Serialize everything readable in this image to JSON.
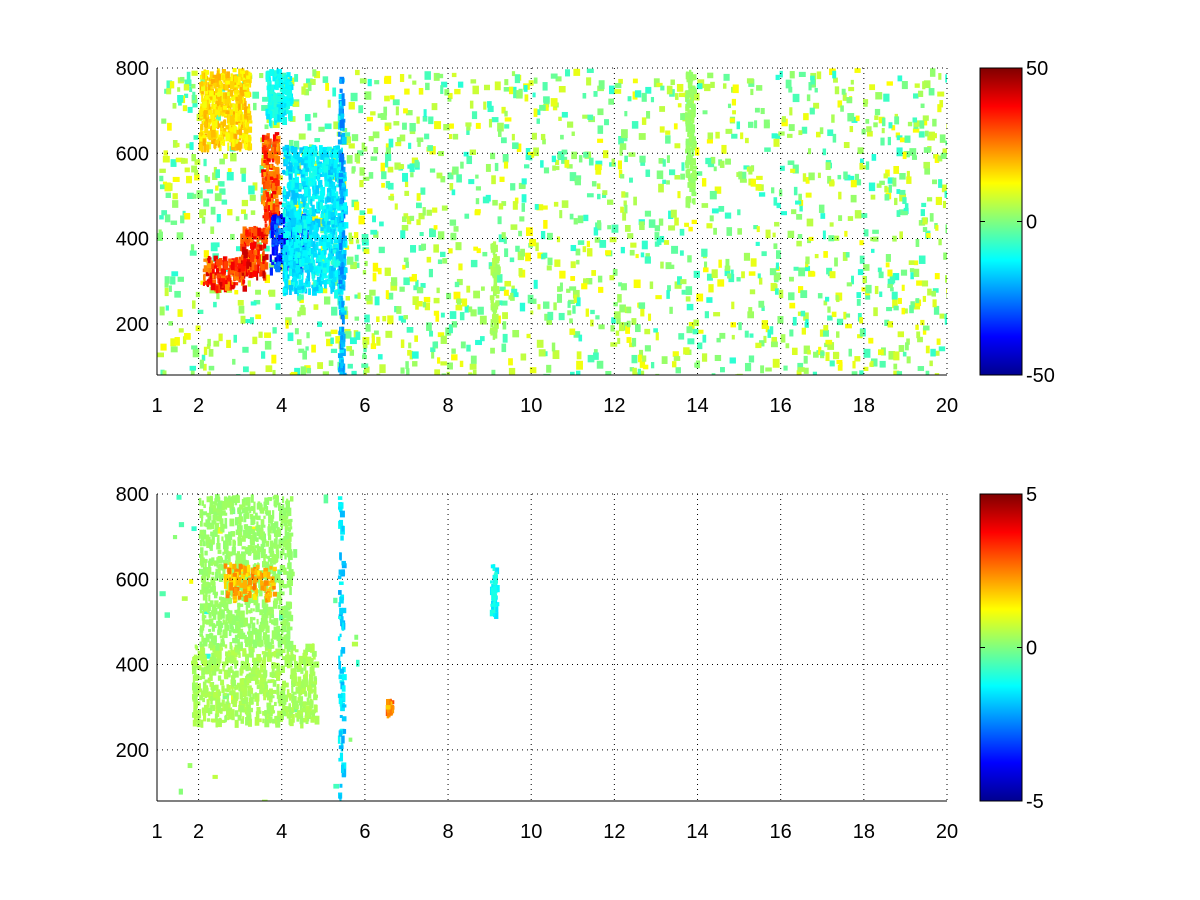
{
  "chart_data": [
    {
      "type": "heatmap",
      "title": "",
      "xlabel": "",
      "ylabel": "",
      "xlim": [
        1,
        20
      ],
      "ylim": [
        80,
        800
      ],
      "xticks": [
        1,
        2,
        4,
        6,
        8,
        10,
        12,
        14,
        16,
        18,
        20
      ],
      "yticks": [
        200,
        400,
        600,
        800
      ],
      "grid": true,
      "colormap": "jet",
      "clim": [
        -50,
        50
      ],
      "colorbar_ticks": [
        -50,
        0,
        50
      ],
      "features": [
        {
          "x": [
            2.1,
            3.1
          ],
          "y": [
            290,
            360
          ],
          "value": 40
        },
        {
          "x": [
            3.0,
            3.6
          ],
          "y": [
            320,
            430
          ],
          "value": 42
        },
        {
          "x": [
            3.5,
            3.9
          ],
          "y": [
            420,
            650
          ],
          "value": 38
        },
        {
          "x": [
            2.0,
            3.2
          ],
          "y": [
            620,
            800
          ],
          "value": 20
        },
        {
          "x": [
            3.7,
            4.6
          ],
          "y": [
            330,
            460
          ],
          "value": -40
        },
        {
          "x": [
            4.0,
            5.5
          ],
          "y": [
            280,
            620
          ],
          "value": -18
        },
        {
          "x": [
            3.6,
            4.2
          ],
          "y": [
            680,
            800
          ],
          "value": -15
        },
        {
          "x": [
            5.35,
            5.45
          ],
          "y": [
            80,
            800
          ],
          "value": -25
        },
        {
          "x": [
            13.7,
            13.9
          ],
          "y": [
            480,
            800
          ],
          "value": 3
        },
        {
          "x": [
            9.0,
            9.15
          ],
          "y": [
            180,
            400
          ],
          "value": 5
        }
      ]
    },
    {
      "type": "heatmap",
      "title": "",
      "xlabel": "",
      "ylabel": "",
      "xlim": [
        1,
        20
      ],
      "ylim": [
        80,
        800
      ],
      "xticks": [
        1,
        2,
        4,
        6,
        8,
        10,
        12,
        14,
        16,
        18,
        20
      ],
      "yticks": [
        200,
        400,
        600,
        800
      ],
      "grid": true,
      "colormap": "jet",
      "clim": [
        -5,
        5
      ],
      "colorbar_ticks": [
        -5,
        0,
        5
      ],
      "features": [
        {
          "x": [
            1.8,
            4.8
          ],
          "y": [
            270,
            450
          ],
          "value": 0.5
        },
        {
          "x": [
            2.0,
            4.2
          ],
          "y": [
            450,
            800
          ],
          "value": 0.3
        },
        {
          "x": [
            2.6,
            3.8
          ],
          "y": [
            560,
            640
          ],
          "value": 2.5
        },
        {
          "x": [
            5.35,
            5.45
          ],
          "y": [
            80,
            800
          ],
          "value": -2.0
        },
        {
          "x": [
            9.0,
            9.15
          ],
          "y": [
            520,
            640
          ],
          "value": -1.5
        },
        {
          "x": [
            6.5,
            6.6
          ],
          "y": [
            290,
            320
          ],
          "value": 3.0
        }
      ]
    }
  ]
}
